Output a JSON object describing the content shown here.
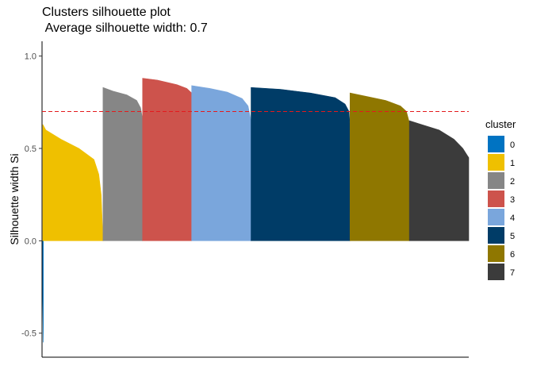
{
  "chart_data": {
    "type": "bar",
    "title": "Clusters silhouette plot",
    "subtitle": " Average silhouette width: 0.7",
    "xlabel": "",
    "ylabel": "Silhouette width Si",
    "ylim": [
      -0.63,
      1.08
    ],
    "yticks": [
      {
        "value": -0.5,
        "label": "-0.5"
      },
      {
        "value": 0.0,
        "label": "0.0"
      },
      {
        "value": 0.5,
        "label": "0.5"
      },
      {
        "value": 1.0,
        "label": "1.0"
      }
    ],
    "average_silhouette": 0.7,
    "grid": false,
    "legend": {
      "title": "cluster",
      "placement": "right"
    },
    "series": [
      {
        "name": "0",
        "color": "#0073C2",
        "profile": [
          [
            0.0,
            -0.05
          ],
          [
            0.5,
            -0.3
          ],
          [
            1.0,
            -0.55
          ]
        ]
      },
      {
        "name": "1",
        "color": "#EFC000",
        "profile": [
          [
            0.0,
            0.63
          ],
          [
            0.05,
            0.6
          ],
          [
            0.3,
            0.55
          ],
          [
            0.6,
            0.5
          ],
          [
            0.85,
            0.44
          ],
          [
            0.93,
            0.36
          ],
          [
            0.97,
            0.25
          ],
          [
            1.0,
            0.0
          ]
        ]
      },
      {
        "name": "2",
        "color": "#868686",
        "profile": [
          [
            0.0,
            0.83
          ],
          [
            0.25,
            0.81
          ],
          [
            0.6,
            0.79
          ],
          [
            0.85,
            0.76
          ],
          [
            0.95,
            0.72
          ],
          [
            1.0,
            0.66
          ]
        ]
      },
      {
        "name": "3",
        "color": "#CD534C",
        "profile": [
          [
            0.0,
            0.88
          ],
          [
            0.3,
            0.87
          ],
          [
            0.7,
            0.845
          ],
          [
            0.9,
            0.825
          ],
          [
            1.0,
            0.8
          ]
        ]
      },
      {
        "name": "4",
        "color": "#7AA6DC",
        "profile": [
          [
            0.0,
            0.84
          ],
          [
            0.3,
            0.825
          ],
          [
            0.6,
            0.805
          ],
          [
            0.85,
            0.77
          ],
          [
            0.95,
            0.73
          ],
          [
            1.0,
            0.65
          ]
        ]
      },
      {
        "name": "5",
        "color": "#003C67",
        "profile": [
          [
            0.0,
            0.83
          ],
          [
            0.3,
            0.82
          ],
          [
            0.6,
            0.8
          ],
          [
            0.85,
            0.775
          ],
          [
            0.95,
            0.74
          ],
          [
            0.99,
            0.7
          ],
          [
            1.0,
            0.62
          ]
        ]
      },
      {
        "name": "6",
        "color": "#8F7700",
        "profile": [
          [
            0.0,
            0.8
          ],
          [
            0.3,
            0.78
          ],
          [
            0.6,
            0.76
          ],
          [
            0.85,
            0.73
          ],
          [
            0.95,
            0.7
          ],
          [
            1.0,
            0.64
          ]
        ]
      },
      {
        "name": "7",
        "color": "#3B3B3B",
        "profile": [
          [
            0.0,
            0.65
          ],
          [
            0.2,
            0.63
          ],
          [
            0.5,
            0.6
          ],
          [
            0.75,
            0.55
          ],
          [
            0.9,
            0.5
          ],
          [
            0.96,
            0.47
          ],
          [
            1.0,
            0.45
          ]
        ]
      }
    ],
    "cluster_sizes": [
      1,
      76,
      50,
      62,
      75,
      125,
      75,
      75
    ]
  }
}
